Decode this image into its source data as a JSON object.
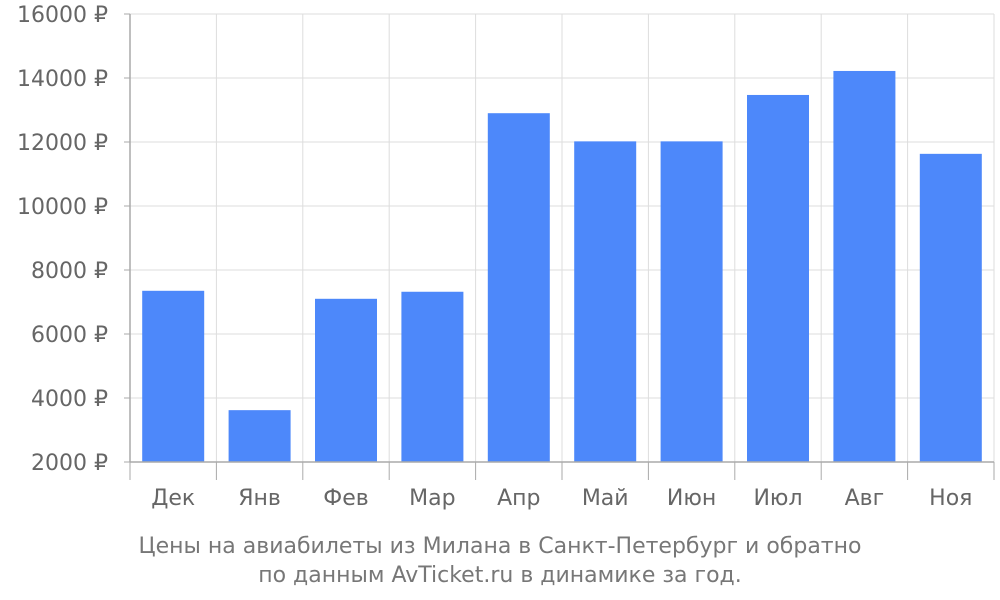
{
  "caption": {
    "line1": "Цены на авиабилеты из Милана в Санкт-Петербург и обратно",
    "line2": "по данным AvTicket.ru в динамике за год."
  },
  "colors": {
    "bar": "#4d88fa",
    "grid": "#dddddd",
    "axis": "#aaaaaa",
    "text": "#666666"
  },
  "chart_data": {
    "type": "bar",
    "categories": [
      "Дек",
      "Янв",
      "Фев",
      "Мар",
      "Апр",
      "Май",
      "Июн",
      "Июл",
      "Авг",
      "Ноя"
    ],
    "values": [
      7350,
      3620,
      7100,
      7320,
      12900,
      12020,
      12020,
      13470,
      14220,
      11630
    ],
    "ylim": [
      2000,
      16000
    ],
    "yticks": [
      2000,
      4000,
      6000,
      8000,
      10000,
      12000,
      14000,
      16000
    ],
    "ytick_suffix": " ₽",
    "title": "",
    "xlabel": "",
    "ylabel": "",
    "grid": true,
    "legend": "none"
  }
}
